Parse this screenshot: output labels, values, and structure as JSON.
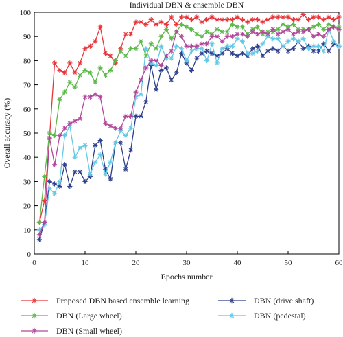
{
  "chart_data": {
    "type": "line",
    "title": "Individual DBN & ensemble DBN",
    "xlabel": "Epochs number",
    "ylabel": "Overall accuracy (%)",
    "xlim": [
      0,
      60
    ],
    "ylim": [
      0,
      100
    ],
    "xticks": [
      0,
      10,
      20,
      30,
      40,
      50,
      60
    ],
    "yticks": [
      0,
      10,
      20,
      30,
      40,
      50,
      60,
      70,
      80,
      90,
      100
    ],
    "grid": false,
    "legend_position": "bottom",
    "x": [
      1,
      2,
      3,
      4,
      5,
      6,
      7,
      8,
      9,
      10,
      11,
      12,
      13,
      14,
      15,
      16,
      17,
      18,
      19,
      20,
      21,
      22,
      23,
      24,
      25,
      26,
      27,
      28,
      29,
      30,
      31,
      32,
      33,
      34,
      35,
      36,
      37,
      38,
      39,
      40,
      41,
      42,
      43,
      44,
      45,
      46,
      47,
      48,
      49,
      50,
      51,
      52,
      53,
      54,
      55,
      56,
      57,
      58,
      59,
      60
    ],
    "series": [
      {
        "name": "Proposed DBN based ensemble learning",
        "color": "#e8343a",
        "marker": "asterisk",
        "values": [
          13,
          22,
          48,
          79,
          76,
          75,
          79,
          75,
          79,
          85,
          86,
          88,
          94,
          83,
          82,
          79,
          85,
          91,
          91,
          96,
          96,
          95,
          97,
          95,
          96,
          95,
          98,
          95,
          98,
          98,
          97,
          98,
          96,
          97,
          98,
          97,
          97,
          97,
          97,
          98,
          97,
          96,
          97,
          97,
          96,
          97,
          98,
          98,
          98,
          98,
          97,
          97,
          99,
          97,
          98,
          98,
          97,
          98,
          97,
          98
        ]
      },
      {
        "name": "DBN (Large wheel)",
        "color": "#5bb84a",
        "marker": "asterisk",
        "values": [
          13,
          32,
          50,
          49,
          64,
          67,
          71,
          69,
          74,
          76,
          75,
          71,
          77,
          74,
          76,
          80,
          84,
          82,
          85,
          85,
          88,
          82,
          87,
          85,
          90,
          93,
          89,
          92,
          95,
          94,
          93,
          91,
          90,
          92,
          91,
          93,
          92,
          92,
          95,
          94,
          94,
          91,
          93,
          94,
          91,
          92,
          92,
          93,
          95,
          94,
          95,
          93,
          93,
          93,
          94,
          95,
          93,
          95,
          94,
          94
        ]
      },
      {
        "name": "DBN (drive shaft)",
        "color": "#2c3f8c",
        "marker": "asterisk",
        "values": [
          6,
          13,
          30,
          29,
          28,
          37,
          28,
          34,
          34,
          30,
          32,
          45,
          47,
          35,
          31,
          46,
          46,
          35,
          43,
          57,
          57,
          63,
          78,
          68,
          76,
          77,
          72,
          75,
          83,
          79,
          76,
          81,
          83,
          84,
          83,
          82,
          83,
          85,
          83,
          82,
          83,
          82,
          85,
          86,
          82,
          84,
          85,
          84,
          86,
          84,
          85,
          88,
          85,
          86,
          84,
          84,
          87,
          84,
          87,
          86
        ]
      },
      {
        "name": "DBN (pedestal)",
        "color": "#62c8e6",
        "marker": "asterisk",
        "values": [
          10,
          12,
          27,
          25,
          30,
          49,
          53,
          40,
          44,
          45,
          33,
          38,
          41,
          33,
          38,
          46,
          51,
          49,
          52,
          65,
          66,
          85,
          79,
          78,
          86,
          81,
          81,
          86,
          85,
          80,
          84,
          85,
          85,
          80,
          87,
          79,
          85,
          86,
          86,
          89,
          88,
          83,
          83,
          84,
          87,
          90,
          89,
          89,
          86,
          88,
          89,
          88,
          89,
          85,
          86,
          86,
          84,
          93,
          88,
          86
        ]
      },
      {
        "name": "DBN (Small wheel)",
        "color": "#b0479a",
        "marker": "asterisk",
        "values": [
          8,
          13,
          48,
          37,
          49,
          52,
          54,
          55,
          56,
          65,
          65,
          66,
          65,
          54,
          53,
          52,
          52,
          57,
          57,
          67,
          72,
          77,
          80,
          80,
          78,
          82,
          84,
          92,
          90,
          86,
          86,
          86,
          87,
          87,
          90,
          90,
          88,
          90,
          90,
          91,
          91,
          90,
          92,
          91,
          92,
          91,
          93,
          91,
          92,
          93,
          91,
          92,
          92,
          93,
          90,
          91,
          90,
          93,
          94,
          93
        ]
      }
    ]
  }
}
